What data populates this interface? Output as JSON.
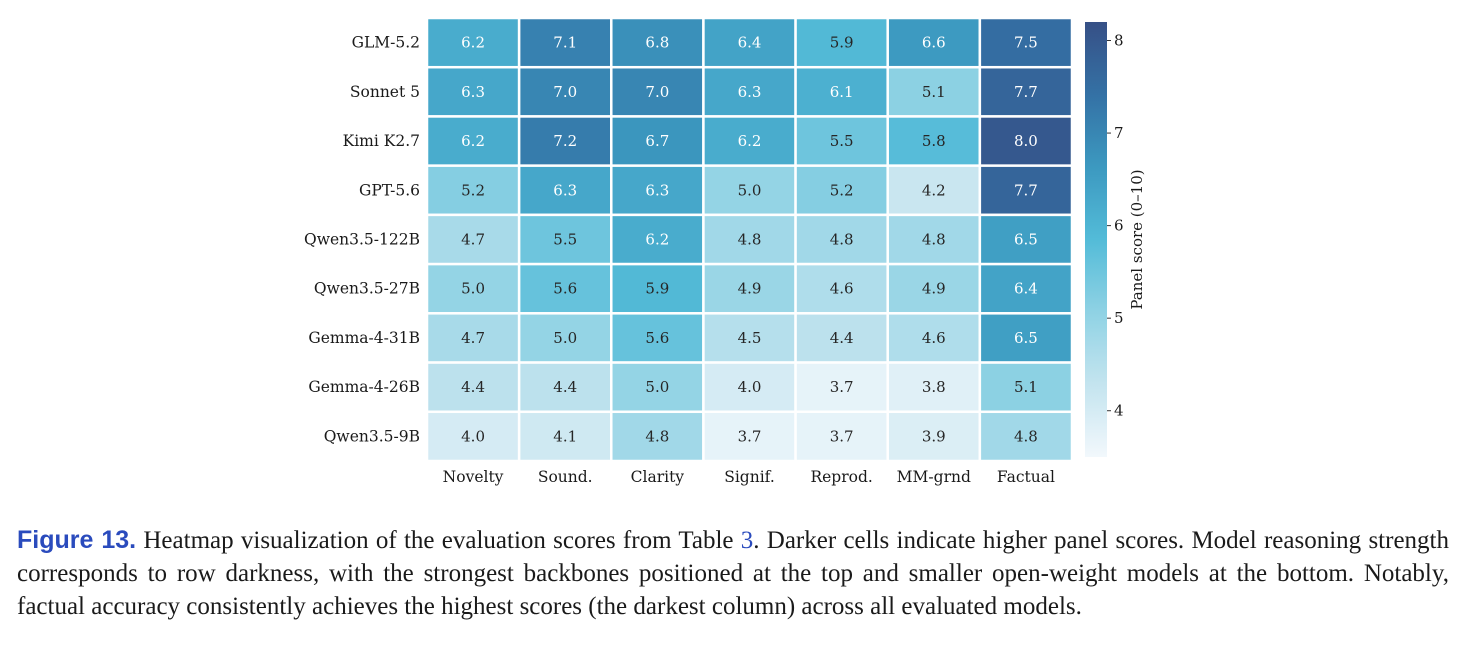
{
  "chart_data": {
    "type": "heatmap",
    "rows": [
      "GLM-5.2",
      "Sonnet 5",
      "Kimi K2.7",
      "GPT-5.6",
      "Qwen3.5-122B",
      "Qwen3.5-27B",
      "Gemma-4-31B",
      "Gemma-4-26B",
      "Qwen3.5-9B"
    ],
    "columns": [
      "Novelty",
      "Sound.",
      "Clarity",
      "Signif.",
      "Reprod.",
      "MM-grnd",
      "Factual"
    ],
    "values": [
      [
        6.2,
        7.1,
        6.8,
        6.4,
        5.9,
        6.6,
        7.5
      ],
      [
        6.3,
        7.0,
        7.0,
        6.3,
        6.1,
        5.1,
        7.7
      ],
      [
        6.2,
        7.2,
        6.7,
        6.2,
        5.5,
        5.8,
        8.0
      ],
      [
        5.2,
        6.3,
        6.3,
        5.0,
        5.2,
        4.2,
        7.7
      ],
      [
        4.7,
        5.5,
        6.2,
        4.8,
        4.8,
        4.8,
        6.5
      ],
      [
        5.0,
        5.6,
        5.9,
        4.9,
        4.6,
        4.9,
        6.4
      ],
      [
        4.7,
        5.0,
        5.6,
        4.5,
        4.4,
        4.6,
        6.5
      ],
      [
        4.4,
        4.4,
        5.0,
        4.0,
        3.7,
        3.8,
        5.1
      ],
      [
        4.0,
        4.1,
        4.8,
        3.7,
        3.7,
        3.9,
        4.8
      ]
    ],
    "colorbar": {
      "label": "Panel score (0–10)",
      "range": [
        3.5,
        8.2
      ],
      "ticks": [
        4,
        5,
        6,
        7,
        8
      ],
      "colormap": [
        "#f2f8fc",
        "#c4e4ef",
        "#8fd2e4",
        "#53bbd8",
        "#3c99c0",
        "#3471a5",
        "#365086"
      ]
    },
    "grid": false,
    "legend": "colorbar-right"
  },
  "caption": {
    "label": "Figure 13.",
    "text_before_ref": " Heatmap visualization of the evaluation scores from Table ",
    "ref": "3",
    "text_after_ref": ".  Darker cells indicate higher panel scores. Model reasoning strength corresponds to row darkness, with the strongest backbones positioned at the top and smaller open-weight models at the bottom. Notably, factual accuracy consistently achieves the highest scores (the darkest column) across all evaluated models."
  }
}
